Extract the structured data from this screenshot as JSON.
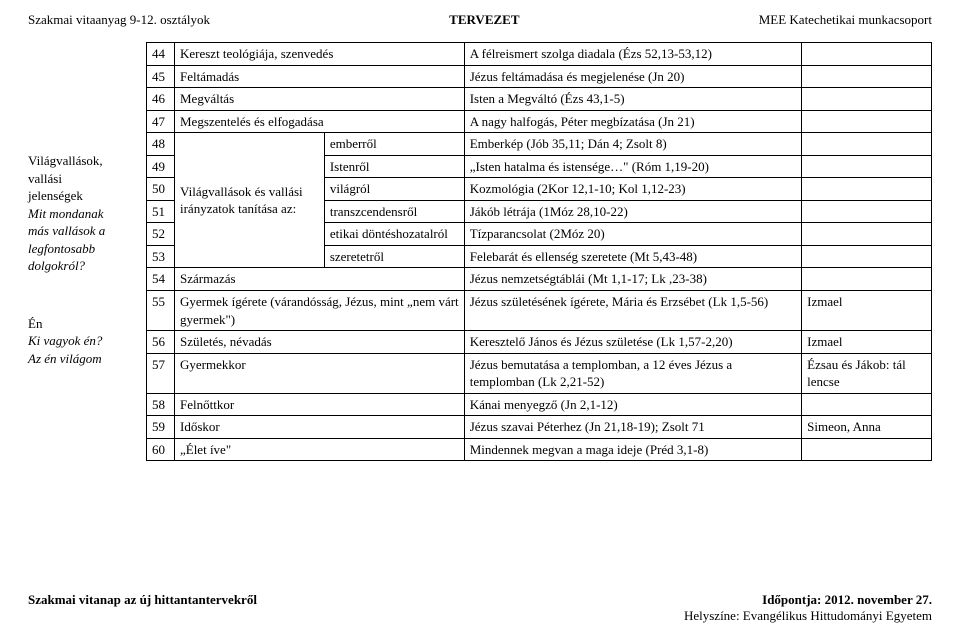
{
  "header": {
    "left": "Szakmai vitaanyag 9-12. osztályok",
    "center": "TERVEZET",
    "right": "MEE Katechetikai munkacsoport"
  },
  "side": {
    "block1_lines": [
      "Világvallások,",
      "vallási",
      "jelenségek"
    ],
    "block1_italic": [
      "Mit mondanak",
      "más vallások a",
      "legfontosabb",
      "dolgokról?"
    ],
    "block2_title": "Én",
    "block2_italic": [
      "Ki vagyok én?",
      "Az én világom"
    ]
  },
  "rows_top": [
    {
      "n": "44",
      "c2": "Kereszt teológiája, szenvedés",
      "c4": "A félreismert szolga diadala (Ézs 52,13-53,12)",
      "c5": ""
    },
    {
      "n": "45",
      "c2": "Feltámadás",
      "c4": "Jézus feltámadása és megjelenése (Jn 20)",
      "c5": ""
    },
    {
      "n": "46",
      "c2": "Megváltás",
      "c4": "Isten a Megváltó (Ézs 43,1-5)",
      "c5": ""
    },
    {
      "n": "47",
      "c2": "Megszentelés és elfogadása",
      "c4": "A nagy halfogás, Péter megbízatása (Jn 21)",
      "c5": ""
    }
  ],
  "merged_label": "Világvallások és vallási irányzatok tanítása az:",
  "rows_merge": [
    {
      "n": "48",
      "c3": "emberről",
      "c4": "Emberkép (Jób 35,11; Dán 4; Zsolt 8)",
      "c5": ""
    },
    {
      "n": "49",
      "c3": "Istenről",
      "c4": "„Isten hatalma és istensége…\" (Róm 1,19-20)",
      "c5": ""
    },
    {
      "n": "50",
      "c3": "világról",
      "c4": "Kozmológia (2Kor 12,1-10; Kol 1,12-23)",
      "c5": ""
    },
    {
      "n": "51",
      "c3": "transzcendensről",
      "c4": "Jákób létrája (1Móz 28,10-22)",
      "c5": ""
    },
    {
      "n": "52",
      "c3": "etikai döntéshozatalról",
      "c4": "Tízparancsolat (2Móz 20)",
      "c5": ""
    },
    {
      "n": "53",
      "c3": "szeretetről",
      "c4": "Felebarát és ellenség szeretete (Mt 5,43-48)",
      "c5": ""
    }
  ],
  "rows_bottom": [
    {
      "n": "54",
      "c2": "Származás",
      "c4": "Jézus nemzetségtáblái (Mt 1,1-17; Lk ,23-38)",
      "c5": ""
    },
    {
      "n": "55",
      "c2": "Gyermek ígérete (várandósság, Jézus, mint „nem várt gyermek\")",
      "c4": "Jézus születésének ígérete, Mária és Erzsébet (Lk 1,5-56)",
      "c5": "Izmael"
    },
    {
      "n": "56",
      "c2": "Születés, névadás",
      "c4": "Keresztelő János és Jézus születése (Lk 1,57-2,20)",
      "c5": "Izmael"
    },
    {
      "n": "57",
      "c2": "Gyermekkor",
      "c4": "Jézus bemutatása a templomban, a 12 éves Jézus a templomban (Lk 2,21-52)",
      "c5": "Ézsau és Jákob: tál lencse"
    },
    {
      "n": "58",
      "c2": "Felnőttkor",
      "c4": "Kánai menyegző (Jn 2,1-12)",
      "c5": ""
    },
    {
      "n": "59",
      "c2": "Időskor",
      "c4": "Jézus szavai Péterhez (Jn 21,18-19); Zsolt 71",
      "c5": "Simeon, Anna"
    },
    {
      "n": "60",
      "c2": "„Élet íve\"",
      "c4": "Mindennek megvan a maga ideje (Préd 3,1-8)",
      "c5": ""
    }
  ],
  "footer": {
    "left": "Szakmai vitanap az új hittantantervekről",
    "right_line1": "Időpontja: 2012. november 27.",
    "right_line2": "Helyszíne: Evangélikus Hittudományi Egyetem"
  }
}
